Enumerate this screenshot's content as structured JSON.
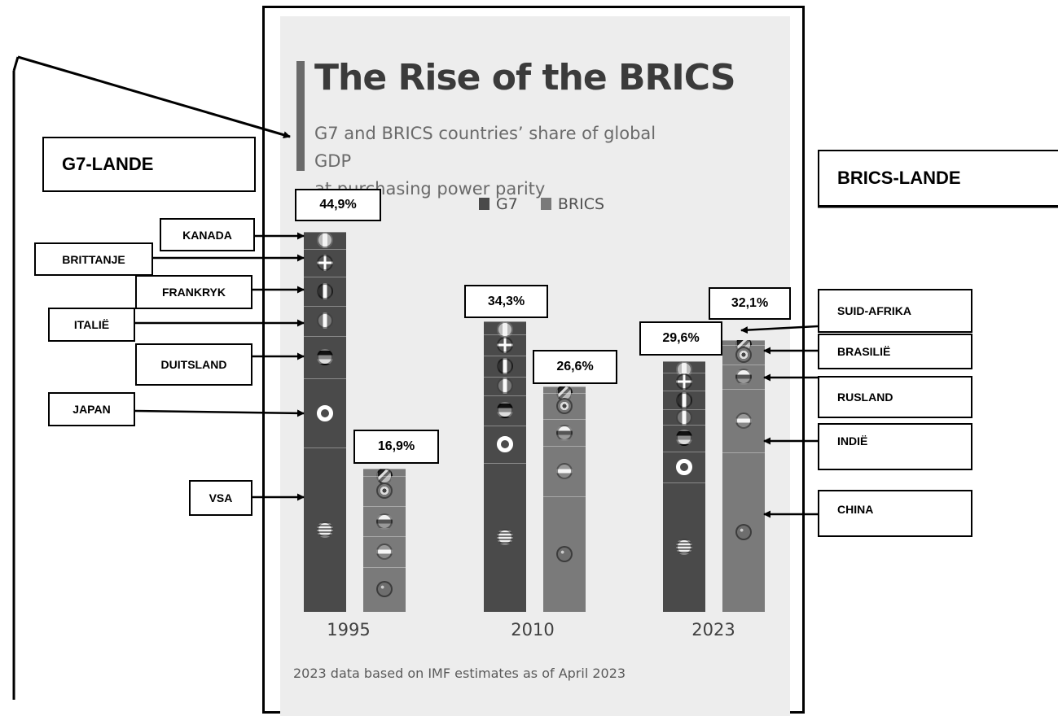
{
  "title": "The Rise of the BRICS",
  "subtitle_line1": "G7 and BRICS countries’ share of global GDP",
  "subtitle_line2": "at purchasing power parity",
  "legend": [
    {
      "name": "G7",
      "color": "#4a4a4a"
    },
    {
      "name": "BRICS",
      "color": "#7a7a7a"
    }
  ],
  "footnote": "2023 data based on IMF estimates as of April 2023",
  "callouts": {
    "g7_heading": "G7-LANDE",
    "brics_heading": "BRICS-LANDE",
    "g7_countries": [
      "KANADA",
      "BRITTANJE",
      "FRANKRYK",
      "ITALIË",
      "DUITSLAND",
      "JAPAN",
      "VSA"
    ],
    "brics_countries": [
      "SUID-AFRIKA",
      "BRASILIË",
      "RUSLAND",
      "INDIË",
      "CHINA"
    ]
  },
  "chart_data": {
    "type": "bar",
    "title": "The Rise of the BRICS",
    "subtitle": "G7 and BRICS countries’ share of global GDP at purchasing power parity",
    "categories": [
      "1995",
      "2010",
      "2023"
    ],
    "unit": "% of global GDP (PPP)",
    "stacked": true,
    "series": [
      {
        "name": "G7",
        "values": [
          44.9,
          34.3,
          29.6
        ]
      },
      {
        "name": "BRICS",
        "values": [
          16.9,
          26.6,
          32.1
        ]
      }
    ],
    "data_labels": {
      "G7": [
        "44,9%",
        "34,3%",
        "29,6%"
      ],
      "BRICS": [
        "16,9%",
        "26,6%",
        "32,1%"
      ]
    },
    "components": {
      "G7": {
        "countries": [
          "Canada",
          "UK",
          "France",
          "Italy",
          "Germany",
          "Japan",
          "USA"
        ],
        "icons": [
          "flag-canada-icon",
          "flag-uk-icon",
          "flag-france-icon",
          "flag-italy-icon",
          "flag-germany-icon",
          "flag-japan-icon",
          "flag-usa-icon"
        ],
        "values": [
          [
            2.0,
            3.3,
            3.4,
            3.6,
            5.0,
            8.2,
            19.4
          ],
          [
            1.5,
            2.5,
            2.5,
            2.2,
            3.6,
            4.4,
            17.6
          ],
          [
            1.3,
            2.2,
            2.2,
            1.8,
            3.2,
            3.7,
            15.4
          ]
        ]
      },
      "BRICS": {
        "countries": [
          "South Africa",
          "Brazil",
          "Russia",
          "India",
          "China"
        ],
        "icons": [
          "flag-southafrica-icon",
          "flag-brazil-icon",
          "flag-russia-icon",
          "flag-india-icon",
          "flag-china-icon"
        ],
        "values": [
          [
            0.8,
            3.6,
            3.6,
            3.6,
            5.3
          ],
          [
            0.7,
            3.1,
            3.2,
            5.9,
            13.7
          ],
          [
            0.6,
            2.3,
            2.9,
            7.5,
            18.8
          ]
        ]
      }
    },
    "legend_position": "top",
    "grid": false
  }
}
